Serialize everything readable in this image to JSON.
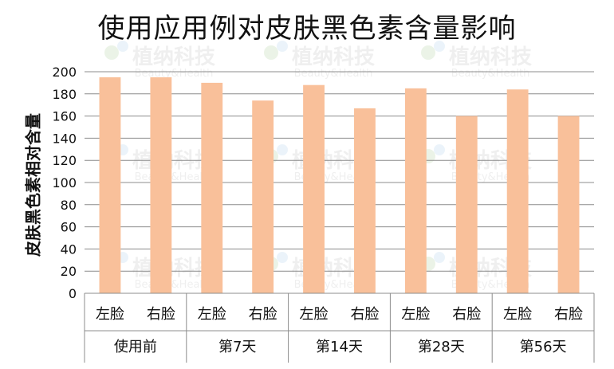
{
  "chart_data": {
    "type": "bar",
    "title": "使用应用例对皮肤黑色素含量影响",
    "ylabel": "皮肤黑色素相对含量",
    "xlabel": "",
    "ylim": [
      0,
      200
    ],
    "yticks": [
      0,
      20,
      40,
      60,
      80,
      100,
      120,
      140,
      160,
      180,
      200
    ],
    "grid": true,
    "bar_color": "#F9C09A",
    "groups": [
      {
        "label": "使用前",
        "bars": [
          {
            "label": "左脸",
            "value": 195
          },
          {
            "label": "右脸",
            "value": 195
          }
        ]
      },
      {
        "label": "第7天",
        "bars": [
          {
            "label": "左脸",
            "value": 190
          },
          {
            "label": "右脸",
            "value": 174
          }
        ]
      },
      {
        "label": "第14天",
        "bars": [
          {
            "label": "左脸",
            "value": 188
          },
          {
            "label": "右脸",
            "value": 167
          }
        ]
      },
      {
        "label": "第28天",
        "bars": [
          {
            "label": "左脸",
            "value": 185
          },
          {
            "label": "右脸",
            "value": 160
          }
        ]
      },
      {
        "label": "第56天",
        "bars": [
          {
            "label": "左脸",
            "value": 184
          },
          {
            "label": "右脸",
            "value": 160
          }
        ]
      }
    ]
  },
  "watermark": {
    "brand": "植纳科技",
    "tagline": "Beauty&Health"
  }
}
